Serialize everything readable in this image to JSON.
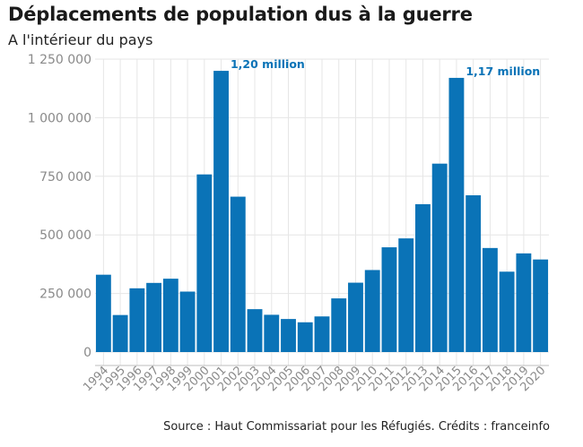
{
  "header": {
    "title": "Déplacements de population dus à la guerre",
    "subtitle": "A l'intérieur du pays"
  },
  "footer": {
    "source": "Source : Haut Commissariat pour les Réfugiés. Crédits : franceinfo"
  },
  "colors": {
    "bar": "#0a73b7",
    "annotation": "#0a73b7",
    "grid": "#e6e6e6",
    "tick_text": "#8a8a8a"
  },
  "chart_data": {
    "type": "bar",
    "title": "Déplacements de population dus à la guerre",
    "subtitle": "A l'intérieur du pays",
    "xlabel": "",
    "ylabel": "",
    "categories": [
      "1994",
      "1995",
      "1996",
      "1997",
      "1998",
      "1999",
      "2000",
      "2001",
      "2002",
      "2003",
      "2004",
      "2005",
      "2006",
      "2007",
      "2008",
      "2009",
      "2010",
      "2011",
      "2012",
      "2013",
      "2014",
      "2015",
      "2016",
      "2017",
      "2018",
      "2019",
      "2020"
    ],
    "values": [
      330000,
      158000,
      272000,
      295000,
      313000,
      258000,
      758000,
      1200000,
      663000,
      183000,
      159000,
      141000,
      127000,
      152000,
      229000,
      296000,
      350000,
      447000,
      485000,
      631000,
      804000,
      1170000,
      669000,
      444000,
      343000,
      421000,
      395000
    ],
    "ylim": [
      0,
      1250000
    ],
    "yticks": [
      0,
      250000,
      500000,
      750000,
      1000000,
      1250000
    ],
    "ytick_labels": [
      "0",
      "250 000",
      "500 000",
      "750 000",
      "1 000 000",
      "1 250 000"
    ],
    "grid": true,
    "annotations": [
      {
        "category": "2001",
        "text": "1,20 million"
      },
      {
        "category": "2015",
        "text": "1,17 million"
      }
    ]
  }
}
